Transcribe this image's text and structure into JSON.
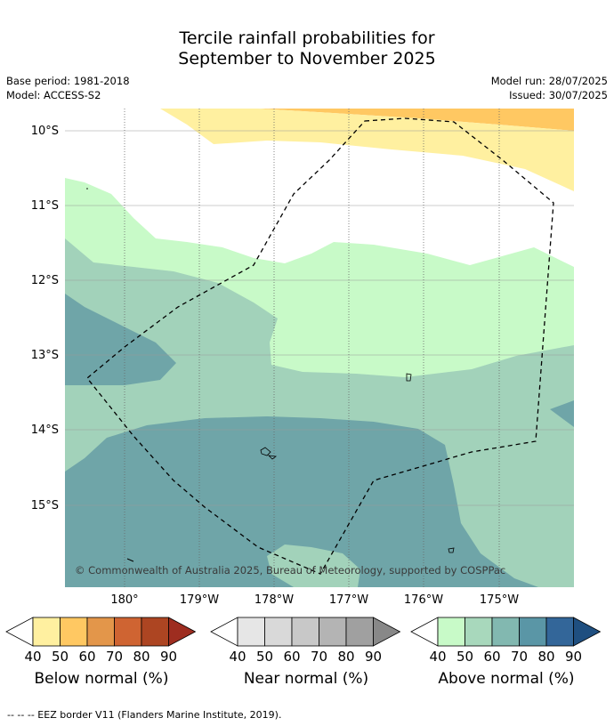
{
  "title_line1": "Tercile rainfall probabilities for",
  "title_line2": "September to November 2025",
  "base_period": "Base period: 1981-2018",
  "model": "Model: ACCESS-S2",
  "model_run": "Model run: 28/07/2025",
  "issued": "Issued: 30/07/2025",
  "y_ticks": [
    "10°S",
    "11°S",
    "12°S",
    "13°S",
    "14°S",
    "15°S"
  ],
  "x_ticks": [
    "180°",
    "179°W",
    "178°W",
    "177°W",
    "176°W",
    "175°W"
  ],
  "copyright": "© Commonwealth of Australia 2025, Bureau of Meteorology, supported by COSPPac",
  "colorbars": [
    {
      "label": "Below normal (%)",
      "ticks": [
        "40",
        "50",
        "60",
        "70",
        "80",
        "90"
      ],
      "colors": [
        "#ffffff",
        "#fff0a0",
        "#ffc862",
        "#e3964a",
        "#cf6432",
        "#ad4522",
        "#9e2d20"
      ]
    },
    {
      "label": "Near normal (%)",
      "ticks": [
        "40",
        "50",
        "60",
        "70",
        "80",
        "90"
      ],
      "colors": [
        "#ffffff",
        "#e6e6e6",
        "#d9d9d9",
        "#c8c8c8",
        "#b4b4b4",
        "#a0a0a0",
        "#888888"
      ]
    },
    {
      "label": "Above normal (%)",
      "ticks": [
        "40",
        "50",
        "60",
        "70",
        "80",
        "90"
      ],
      "colors": [
        "#ffffff",
        "#c8fac8",
        "#a8d8bc",
        "#82b8b0",
        "#5a96a6",
        "#336699",
        "#1f4f80"
      ]
    }
  ],
  "footer": "--  --  -- EEZ border V11 (Flanders Marine Institute, 2019)."
}
